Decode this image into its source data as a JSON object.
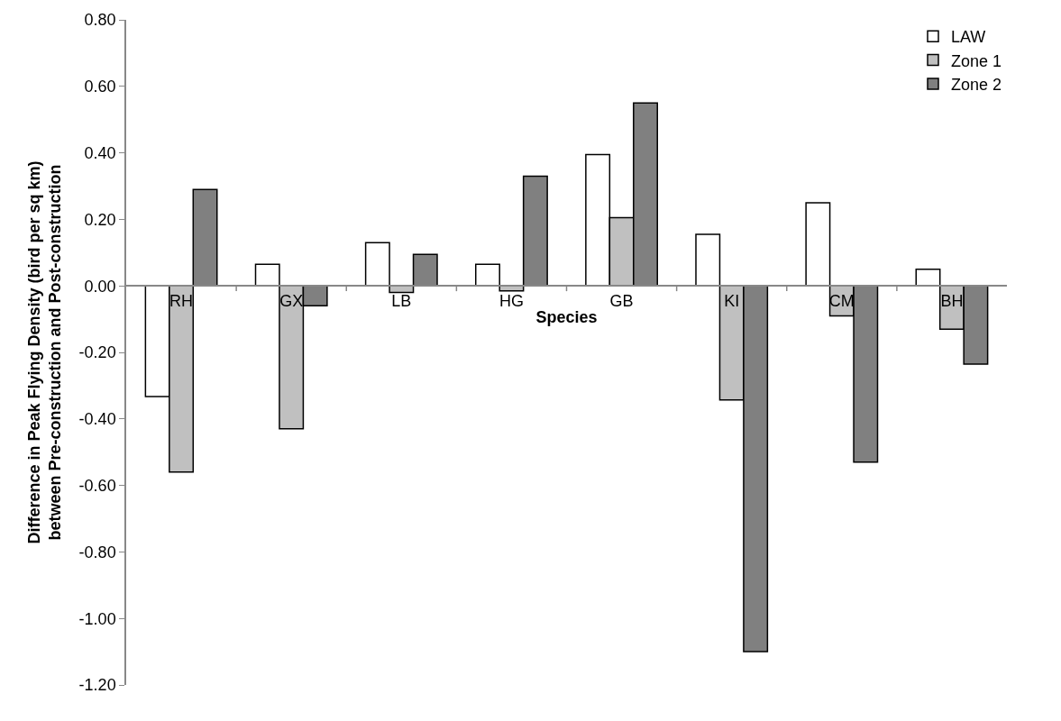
{
  "chart_data": {
    "type": "bar",
    "xlabel": "Species",
    "ylabel": "Difference in Peak Flying Density (bird per sq km)\nbetween Pre-construction and Post-construction",
    "categories": [
      "RH",
      "GX",
      "LB",
      "HG",
      "GB",
      "KI",
      "CM",
      "BH"
    ],
    "series": [
      {
        "name": "LAW",
        "color": "#ffffff",
        "values": [
          -0.333,
          0.065,
          0.13,
          0.065,
          0.395,
          0.155,
          0.25,
          0.05
        ]
      },
      {
        "name": "Zone 1",
        "color": "#c0c0c0",
        "values": [
          -0.56,
          -0.43,
          -0.02,
          -0.015,
          0.205,
          -0.343,
          -0.09,
          -0.13
        ]
      },
      {
        "name": "Zone 2",
        "color": "#808080",
        "values": [
          0.29,
          -0.06,
          0.095,
          0.33,
          0.55,
          -1.1,
          -0.53,
          -0.235
        ]
      }
    ],
    "ylim": [
      -1.2,
      0.8
    ],
    "yticks": [
      {
        "value": -1.2,
        "label": "-1.20"
      },
      {
        "value": -1.0,
        "label": "-1.00"
      },
      {
        "value": -0.8,
        "label": "-0.80"
      },
      {
        "value": -0.6,
        "label": "-0.60"
      },
      {
        "value": -0.4,
        "label": "-0.40"
      },
      {
        "value": -0.2,
        "label": "-0.20"
      },
      {
        "value": 0,
        "label": "0.00"
      },
      {
        "value": 0.2,
        "label": "0.20"
      },
      {
        "value": 0.4,
        "label": "0.40"
      },
      {
        "value": 0.6,
        "label": "0.60"
      },
      {
        "value": 0.8,
        "label": "0.80"
      }
    ],
    "legend": "top right"
  }
}
